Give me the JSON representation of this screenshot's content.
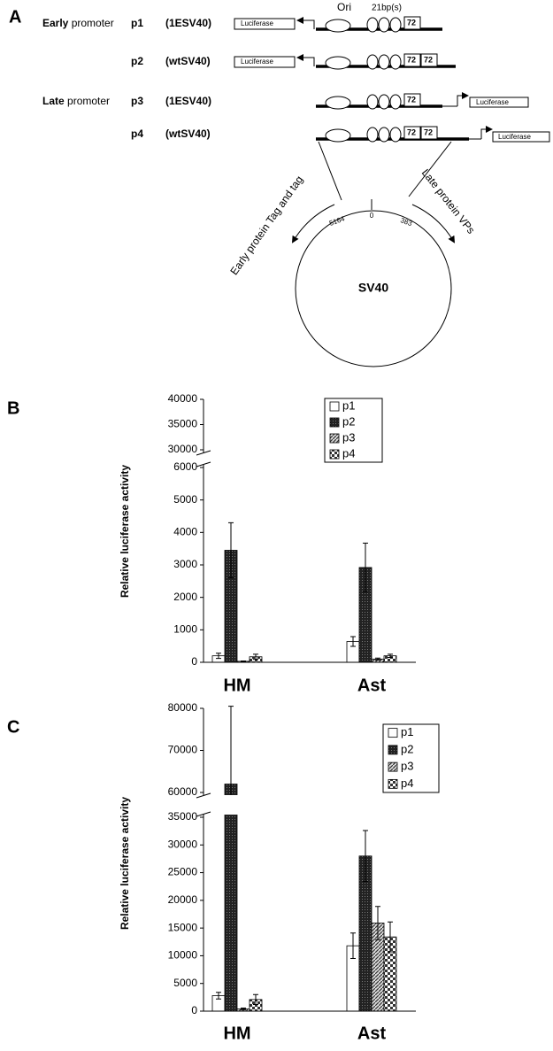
{
  "diagram": {
    "panel_label": "A",
    "ori": "Ori",
    "repeats": "21bp(s)",
    "rows": [
      {
        "group_label": [
          "Early",
          "promoter"
        ],
        "name": "p1",
        "construct": "(1ESV40)",
        "reporter": "Luciferase",
        "enhancers": [
          "72"
        ]
      },
      {
        "name": "p2",
        "construct": "(wtSV40)",
        "reporter": "Luciferase",
        "enhancers": [
          "72",
          "72"
        ]
      },
      {
        "group_label": [
          "Late",
          "promoter"
        ],
        "name": "p3",
        "construct": "(1ESV40)",
        "reporter": "Luciferase",
        "enhancers": [
          "72"
        ]
      },
      {
        "name": "p4",
        "construct": "(wtSV40)",
        "reporter": "Luciferase",
        "enhancers": [
          "72",
          "72"
        ]
      }
    ],
    "map": {
      "positions": [
        "5164",
        "0",
        "383"
      ],
      "early": "Early protein Tag and tag",
      "late": "Late protein VPs",
      "center": "SV40"
    }
  },
  "chart_data": [
    {
      "type": "bar",
      "panel_label": "B",
      "y_label": "Relative luciferase activity",
      "categories": [
        "HM",
        "Ast"
      ],
      "ylim": [
        0,
        40000
      ],
      "axis_break": [
        6000,
        30000
      ],
      "yticks": [
        0,
        1000,
        2000,
        3000,
        4000,
        5000,
        6000,
        30000,
        35000,
        40000
      ],
      "legend": "upper right",
      "series": [
        {
          "name": "p1",
          "color": "#ffffff",
          "pattern": "none",
          "values": [
            200,
            640
          ],
          "errors": [
            80,
            150
          ]
        },
        {
          "name": "p2",
          "color": "#222222",
          "pattern": "dots",
          "values": [
            3450,
            2920
          ],
          "errors": [
            850,
            750
          ]
        },
        {
          "name": "p3",
          "color": "#999999",
          "pattern": "hatch",
          "values": [
            30,
            100
          ],
          "errors": [
            10,
            30
          ]
        },
        {
          "name": "p4",
          "color": "#666666",
          "pattern": "checker",
          "values": [
            170,
            200
          ],
          "errors": [
            80,
            50
          ]
        }
      ]
    },
    {
      "type": "bar",
      "panel_label": "C",
      "y_label": "Relative luciferase activity",
      "categories": [
        "HM",
        "Ast"
      ],
      "ylim": [
        0,
        80000
      ],
      "axis_break": [
        35000,
        60000
      ],
      "yticks": [
        0,
        5000,
        10000,
        15000,
        20000,
        25000,
        30000,
        35000,
        60000,
        70000,
        80000
      ],
      "legend": "upper right",
      "series": [
        {
          "name": "p1",
          "color": "#ffffff",
          "pattern": "none",
          "values": [
            2800,
            11800
          ],
          "errors": [
            600,
            2300
          ]
        },
        {
          "name": "p2",
          "color": "#222222",
          "pattern": "dots",
          "values": [
            62000,
            28000
          ],
          "errors": [
            18500,
            4600
          ]
        },
        {
          "name": "p3",
          "color": "#999999",
          "pattern": "hatch",
          "values": [
            400,
            15900
          ],
          "errors": [
            150,
            3000
          ]
        },
        {
          "name": "p4",
          "color": "#666666",
          "pattern": "checker",
          "values": [
            2100,
            13400
          ],
          "errors": [
            900,
            2700
          ]
        }
      ]
    }
  ]
}
